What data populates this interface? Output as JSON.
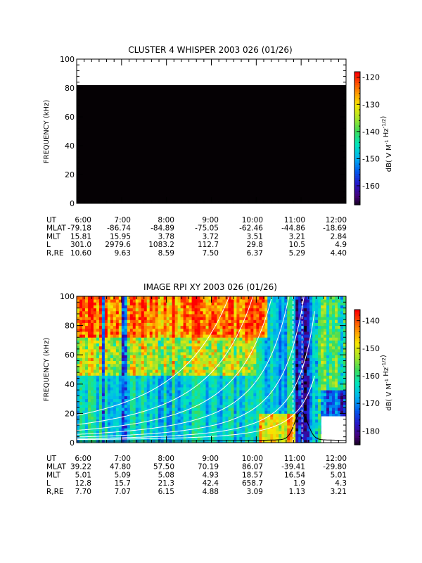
{
  "chart_data": [
    {
      "type": "heatmap",
      "title": "CLUSTER 4 WHISPER 2003 026 (01/26)",
      "ylabel": "FREQUENCY (kHz)",
      "ylim": [
        0,
        100
      ],
      "yticks": [
        "0",
        "20",
        "40",
        "60",
        "80",
        "100"
      ],
      "xticks": [
        "6:00",
        "7:00",
        "8:00",
        "9:00",
        "10:00",
        "11:00",
        "12:00"
      ],
      "data_extent_khz": [
        0,
        80
      ],
      "fill_color": "#050104",
      "colorbar": {
        "label_main": "dB( V M",
        "label_sup1": "-1",
        "label_mid": " Hz",
        "label_sup2": "-1/2",
        "label_end": ")",
        "range": [
          -167,
          -118
        ],
        "ticks": [
          "-120",
          "-130",
          "-140",
          "-150",
          "-160"
        ],
        "tick_values": [
          -120,
          -130,
          -140,
          -150,
          -160
        ]
      },
      "ephemeris": [
        {
          "label": "UT",
          "values": [
            "6:00",
            "7:00",
            "8:00",
            "9:00",
            "10:00",
            "11:00",
            "12:00"
          ]
        },
        {
          "label": "MLAT",
          "values": [
            "-79.18",
            "-86.74",
            "-84.89",
            "-75.05",
            "-62.46",
            "-44.86",
            "-18.69"
          ]
        },
        {
          "label": "MLT",
          "values": [
            "15.81",
            "15.95",
            "3.78",
            "3.72",
            "3.51",
            "3.21",
            "2.84"
          ]
        },
        {
          "label": "L",
          "values": [
            "301.0",
            "2979.6",
            "1083.2",
            "112.7",
            "29.8",
            "10.5",
            "4.9"
          ]
        },
        {
          "label": "R,RE",
          "values": [
            "10.60",
            "9.63",
            "8.59",
            "7.50",
            "6.37",
            "5.29",
            "4.40"
          ]
        }
      ]
    },
    {
      "type": "heatmap",
      "title": "IMAGE RPI XY 2003 026 (01/26)",
      "ylabel": "FREQUENCY (kHz)",
      "ylim": [
        0,
        100
      ],
      "yticks": [
        "0",
        "20",
        "40",
        "60",
        "80",
        "100"
      ],
      "xticks": [
        "6:00",
        "7:00",
        "8:00",
        "9:00",
        "10:00",
        "11:00",
        "12:00"
      ],
      "colorbar": {
        "label_main": "dB( V M",
        "label_sup1": "-1",
        "label_mid": " Hz",
        "label_sup2": "-1/2",
        "label_end": ")",
        "range": [
          -185,
          -136
        ],
        "ticks": [
          "-140",
          "-150",
          "-160",
          "-170",
          "-180"
        ],
        "tick_values": [
          -140,
          -150,
          -160,
          -170,
          -180
        ]
      },
      "overlay_curves_white": {
        "constants": [
          950,
          600,
          380,
          230,
          130,
          70,
          35
        ]
      },
      "overlay_curve_black": {
        "peak_time_hr": 11.0,
        "peak_khz": 20
      },
      "ephemeris": [
        {
          "label": "UT",
          "values": [
            "6:00",
            "7:00",
            "8:00",
            "9:00",
            "10:00",
            "11:00",
            "12:00"
          ]
        },
        {
          "label": "MLAT",
          "values": [
            "39.22",
            "47.80",
            "57.50",
            "70.19",
            "86.07",
            "-39.41",
            "-29.80"
          ]
        },
        {
          "label": "MLT",
          "values": [
            "5.01",
            "5.09",
            "5.08",
            "4.93",
            "18.57",
            "16.54",
            "5.01"
          ]
        },
        {
          "label": "L",
          "values": [
            "12.8",
            "15.7",
            "21.3",
            "42.4",
            "658.7",
            "1.9",
            "4.3"
          ]
        },
        {
          "label": "R,RE",
          "values": [
            "7.70",
            "7.07",
            "6.15",
            "4.88",
            "3.09",
            "1.13",
            "3.21"
          ]
        }
      ]
    }
  ]
}
